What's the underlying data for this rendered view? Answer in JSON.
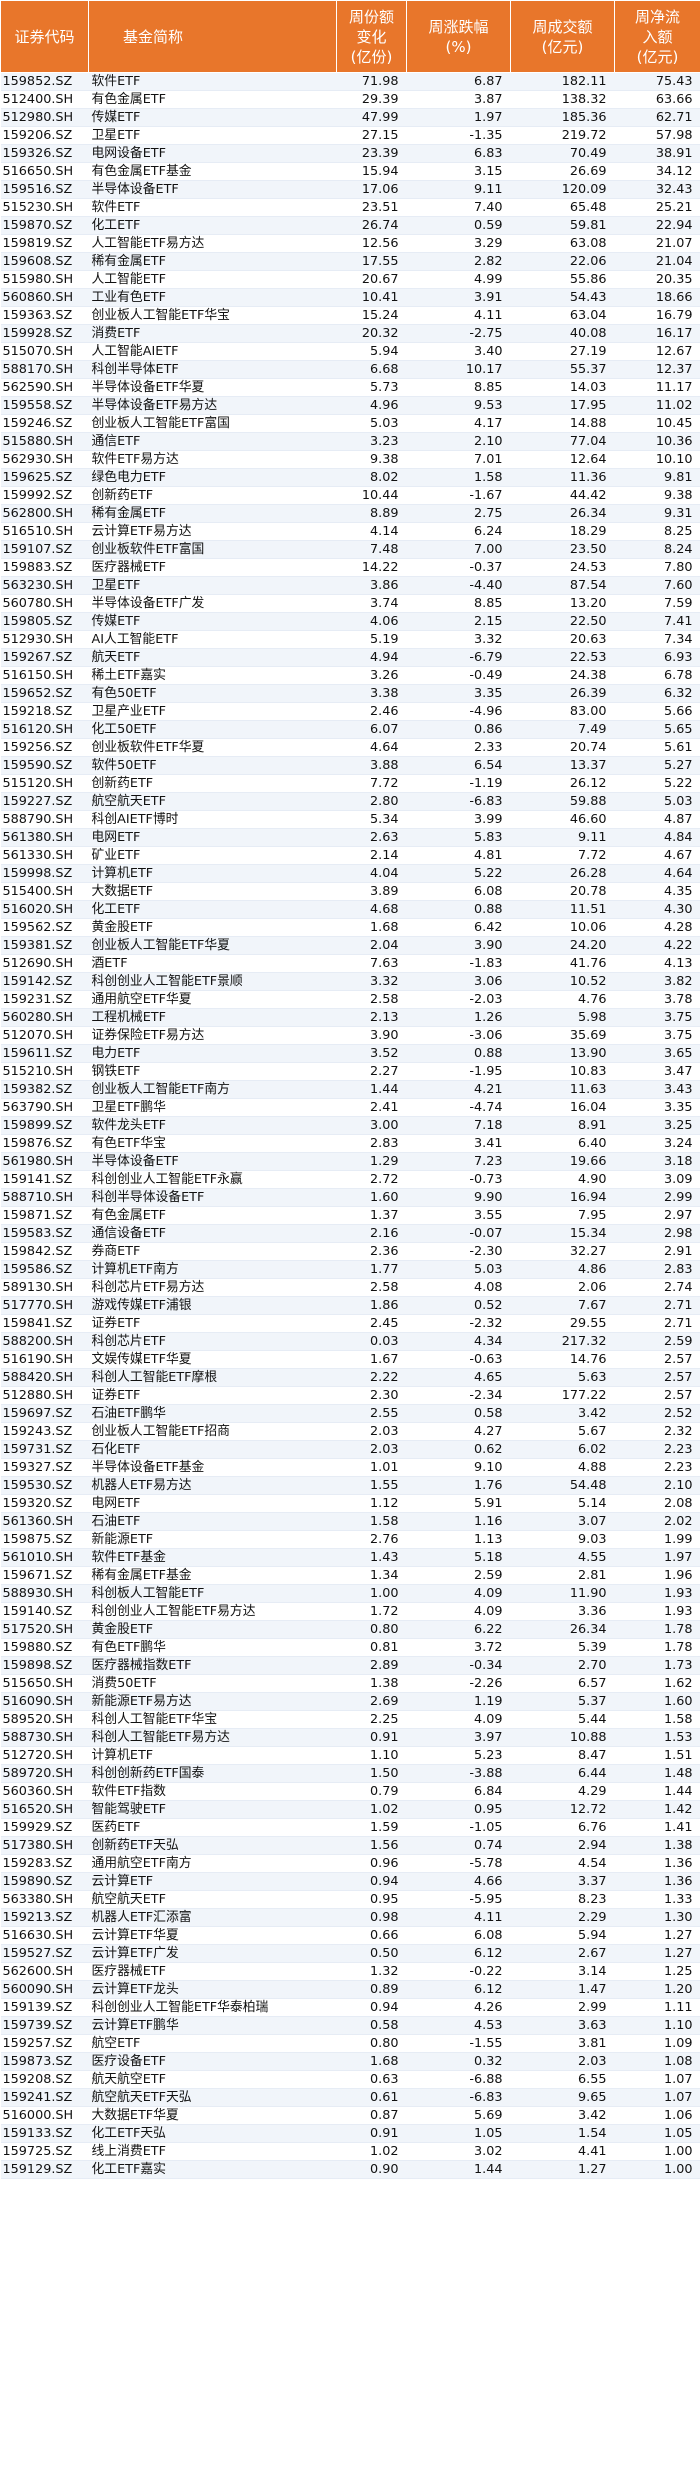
{
  "header": {
    "code": "证券代码",
    "name": "基金简称",
    "share_change": "周份额\n变化\n(亿份)",
    "pct_change": "周涨跌幅\n(%)",
    "turnover": "周成交额\n(亿元)",
    "net_inflow": "周净流\n入额\n(亿元)"
  },
  "rows": [
    [
      "159852.SZ",
      "软件ETF",
      "71.98",
      "6.87",
      "182.11",
      "75.43"
    ],
    [
      "512400.SH",
      "有色金属ETF",
      "29.39",
      "3.87",
      "138.32",
      "63.66"
    ],
    [
      "512980.SH",
      "传媒ETF",
      "47.99",
      "1.97",
      "185.36",
      "62.71"
    ],
    [
      "159206.SZ",
      "卫星ETF",
      "27.15",
      "-1.35",
      "219.72",
      "57.98"
    ],
    [
      "159326.SZ",
      "电网设备ETF",
      "23.39",
      "6.83",
      "70.49",
      "38.91"
    ],
    [
      "516650.SH",
      "有色金属ETF基金",
      "15.94",
      "3.15",
      "26.69",
      "34.12"
    ],
    [
      "159516.SZ",
      "半导体设备ETF",
      "17.06",
      "9.11",
      "120.09",
      "32.43"
    ],
    [
      "515230.SH",
      "软件ETF",
      "23.51",
      "7.40",
      "65.48",
      "25.21"
    ],
    [
      "159870.SZ",
      "化工ETF",
      "26.74",
      "0.59",
      "59.81",
      "22.94"
    ],
    [
      "159819.SZ",
      "人工智能ETF易方达",
      "12.56",
      "3.29",
      "63.08",
      "21.07"
    ],
    [
      "159608.SZ",
      "稀有金属ETF",
      "17.55",
      "2.82",
      "22.06",
      "21.04"
    ],
    [
      "515980.SH",
      "人工智能ETF",
      "20.67",
      "4.99",
      "55.86",
      "20.35"
    ],
    [
      "560860.SH",
      "工业有色ETF",
      "10.41",
      "3.91",
      "54.43",
      "18.66"
    ],
    [
      "159363.SZ",
      "创业板人工智能ETF华宝",
      "15.24",
      "4.11",
      "63.04",
      "16.79"
    ],
    [
      "159928.SZ",
      "消费ETF",
      "20.32",
      "-2.75",
      "40.08",
      "16.17"
    ],
    [
      "515070.SH",
      "人工智能AIETF",
      "5.94",
      "3.40",
      "27.19",
      "12.67"
    ],
    [
      "588170.SH",
      "科创半导体ETF",
      "6.68",
      "10.17",
      "55.37",
      "12.37"
    ],
    [
      "562590.SH",
      "半导体设备ETF华夏",
      "5.73",
      "8.85",
      "14.03",
      "11.17"
    ],
    [
      "159558.SZ",
      "半导体设备ETF易方达",
      "4.96",
      "9.53",
      "17.95",
      "11.02"
    ],
    [
      "159246.SZ",
      "创业板人工智能ETF富国",
      "5.03",
      "4.17",
      "14.88",
      "10.45"
    ],
    [
      "515880.SH",
      "通信ETF",
      "3.23",
      "2.10",
      "77.04",
      "10.36"
    ],
    [
      "562930.SH",
      "软件ETF易方达",
      "9.38",
      "7.01",
      "12.64",
      "10.10"
    ],
    [
      "159625.SZ",
      "绿色电力ETF",
      "8.02",
      "1.58",
      "11.36",
      "9.81"
    ],
    [
      "159992.SZ",
      "创新药ETF",
      "10.44",
      "-1.67",
      "44.42",
      "9.38"
    ],
    [
      "562800.SH",
      "稀有金属ETF",
      "8.89",
      "2.75",
      "26.34",
      "9.31"
    ],
    [
      "516510.SH",
      "云计算ETF易方达",
      "4.14",
      "6.24",
      "18.29",
      "8.25"
    ],
    [
      "159107.SZ",
      "创业板软件ETF富国",
      "7.48",
      "7.00",
      "23.50",
      "8.24"
    ],
    [
      "159883.SZ",
      "医疗器械ETF",
      "14.22",
      "-0.37",
      "24.53",
      "7.80"
    ],
    [
      "563230.SH",
      "卫星ETF",
      "3.86",
      "-4.40",
      "87.54",
      "7.60"
    ],
    [
      "560780.SH",
      "半导体设备ETF广发",
      "3.74",
      "8.85",
      "13.20",
      "7.59"
    ],
    [
      "159805.SZ",
      "传媒ETF",
      "4.06",
      "2.15",
      "22.50",
      "7.41"
    ],
    [
      "512930.SH",
      "AI人工智能ETF",
      "5.19",
      "3.32",
      "20.63",
      "7.34"
    ],
    [
      "159267.SZ",
      "航天ETF",
      "4.94",
      "-6.79",
      "22.53",
      "6.93"
    ],
    [
      "516150.SH",
      "稀土ETF嘉实",
      "3.26",
      "-0.49",
      "24.38",
      "6.78"
    ],
    [
      "159652.SZ",
      "有色50ETF",
      "3.38",
      "3.35",
      "26.39",
      "6.32"
    ],
    [
      "159218.SZ",
      "卫星产业ETF",
      "2.46",
      "-4.96",
      "83.00",
      "5.66"
    ],
    [
      "516120.SH",
      "化工50ETF",
      "6.07",
      "0.86",
      "7.49",
      "5.65"
    ],
    [
      "159256.SZ",
      "创业板软件ETF华夏",
      "4.64",
      "2.33",
      "20.74",
      "5.61"
    ],
    [
      "159590.SZ",
      "软件50ETF",
      "3.88",
      "6.54",
      "13.37",
      "5.27"
    ],
    [
      "515120.SH",
      "创新药ETF",
      "7.72",
      "-1.19",
      "26.12",
      "5.22"
    ],
    [
      "159227.SZ",
      "航空航天ETF",
      "2.80",
      "-6.83",
      "59.88",
      "5.03"
    ],
    [
      "588790.SH",
      "科创AIETF博时",
      "5.34",
      "3.99",
      "46.60",
      "4.87"
    ],
    [
      "561380.SH",
      "电网ETF",
      "2.63",
      "5.83",
      "9.11",
      "4.84"
    ],
    [
      "561330.SH",
      "矿业ETF",
      "2.14",
      "4.81",
      "7.72",
      "4.67"
    ],
    [
      "159998.SZ",
      "计算机ETF",
      "4.04",
      "5.22",
      "26.28",
      "4.64"
    ],
    [
      "515400.SH",
      "大数据ETF",
      "3.89",
      "6.08",
      "20.78",
      "4.35"
    ],
    [
      "516020.SH",
      "化工ETF",
      "4.68",
      "0.88",
      "11.51",
      "4.30"
    ],
    [
      "159562.SZ",
      "黄金股ETF",
      "1.68",
      "6.42",
      "10.06",
      "4.28"
    ],
    [
      "159381.SZ",
      "创业板人工智能ETF华夏",
      "2.04",
      "3.90",
      "24.20",
      "4.22"
    ],
    [
      "512690.SH",
      "酒ETF",
      "7.63",
      "-1.83",
      "41.76",
      "4.13"
    ],
    [
      "159142.SZ",
      "科创创业人工智能ETF景顺",
      "3.32",
      "3.06",
      "10.52",
      "3.82"
    ],
    [
      "159231.SZ",
      "通用航空ETF华夏",
      "2.58",
      "-2.03",
      "4.76",
      "3.78"
    ],
    [
      "560280.SH",
      "工程机械ETF",
      "2.13",
      "1.26",
      "5.98",
      "3.75"
    ],
    [
      "512070.SH",
      "证券保险ETF易方达",
      "3.90",
      "-3.06",
      "35.69",
      "3.75"
    ],
    [
      "159611.SZ",
      "电力ETF",
      "3.52",
      "0.88",
      "13.90",
      "3.65"
    ],
    [
      "515210.SH",
      "钢铁ETF",
      "2.27",
      "-1.95",
      "10.83",
      "3.47"
    ],
    [
      "159382.SZ",
      "创业板人工智能ETF南方",
      "1.44",
      "4.21",
      "11.63",
      "3.43"
    ],
    [
      "563790.SH",
      "卫星ETF鹏华",
      "2.41",
      "-4.74",
      "16.04",
      "3.35"
    ],
    [
      "159899.SZ",
      "软件龙头ETF",
      "3.00",
      "7.18",
      "8.91",
      "3.25"
    ],
    [
      "159876.SZ",
      "有色ETF华宝",
      "2.83",
      "3.41",
      "6.40",
      "3.24"
    ],
    [
      "561980.SH",
      "半导体设备ETF",
      "1.29",
      "7.23",
      "19.66",
      "3.18"
    ],
    [
      "159141.SZ",
      "科创创业人工智能ETF永赢",
      "2.72",
      "-0.73",
      "4.90",
      "3.09"
    ],
    [
      "588710.SH",
      "科创半导体设备ETF",
      "1.60",
      "9.90",
      "16.94",
      "2.99"
    ],
    [
      "159871.SZ",
      "有色金属ETF",
      "1.37",
      "3.55",
      "7.95",
      "2.97"
    ],
    [
      "159583.SZ",
      "通信设备ETF",
      "2.16",
      "-0.07",
      "15.34",
      "2.98"
    ],
    [
      "159842.SZ",
      "券商ETF",
      "2.36",
      "-2.30",
      "32.27",
      "2.91"
    ],
    [
      "159586.SZ",
      "计算机ETF南方",
      "1.77",
      "5.03",
      "4.86",
      "2.83"
    ],
    [
      "589130.SH",
      "科创芯片ETF易方达",
      "2.58",
      "4.08",
      "2.06",
      "2.74"
    ],
    [
      "517770.SH",
      "游戏传媒ETF浦银",
      "1.86",
      "0.52",
      "7.67",
      "2.71"
    ],
    [
      "159841.SZ",
      "证券ETF",
      "2.45",
      "-2.32",
      "29.55",
      "2.71"
    ],
    [
      "588200.SH",
      "科创芯片ETF",
      "0.03",
      "4.34",
      "217.32",
      "2.59"
    ],
    [
      "516190.SH",
      "文娱传媒ETF华夏",
      "1.67",
      "-0.63",
      "14.76",
      "2.57"
    ],
    [
      "588420.SH",
      "科创人工智能ETF摩根",
      "2.22",
      "4.65",
      "5.63",
      "2.57"
    ],
    [
      "512880.SH",
      "证券ETF",
      "2.30",
      "-2.34",
      "177.22",
      "2.57"
    ],
    [
      "159697.SZ",
      "石油ETF鹏华",
      "2.55",
      "0.58",
      "3.42",
      "2.52"
    ],
    [
      "159243.SZ",
      "创业板人工智能ETF招商",
      "2.03",
      "4.27",
      "5.67",
      "2.32"
    ],
    [
      "159731.SZ",
      "石化ETF",
      "2.03",
      "0.62",
      "6.02",
      "2.23"
    ],
    [
      "159327.SZ",
      "半导体设备ETF基金",
      "1.01",
      "9.10",
      "4.88",
      "2.23"
    ],
    [
      "159530.SZ",
      "机器人ETF易方达",
      "1.55",
      "1.76",
      "54.48",
      "2.10"
    ],
    [
      "159320.SZ",
      "电网ETF",
      "1.12",
      "5.91",
      "5.14",
      "2.08"
    ],
    [
      "561360.SH",
      "石油ETF",
      "1.58",
      "1.16",
      "3.07",
      "2.02"
    ],
    [
      "159875.SZ",
      "新能源ETF",
      "2.76",
      "1.13",
      "9.03",
      "1.99"
    ],
    [
      "561010.SH",
      "软件ETF基金",
      "1.43",
      "5.18",
      "4.55",
      "1.97"
    ],
    [
      "159671.SZ",
      "稀有金属ETF基金",
      "1.34",
      "2.59",
      "2.81",
      "1.96"
    ],
    [
      "588930.SH",
      "科创板人工智能ETF",
      "1.00",
      "4.09",
      "11.90",
      "1.93"
    ],
    [
      "159140.SZ",
      "科创创业人工智能ETF易方达",
      "1.72",
      "4.09",
      "3.36",
      "1.93"
    ],
    [
      "517520.SH",
      "黄金股ETF",
      "0.80",
      "6.22",
      "26.34",
      "1.78"
    ],
    [
      "159880.SZ",
      "有色ETF鹏华",
      "0.81",
      "3.72",
      "5.39",
      "1.78"
    ],
    [
      "159898.SZ",
      "医疗器械指数ETF",
      "2.89",
      "-0.34",
      "2.70",
      "1.73"
    ],
    [
      "515650.SH",
      "消费50ETF",
      "1.38",
      "-2.26",
      "6.57",
      "1.62"
    ],
    [
      "516090.SH",
      "新能源ETF易方达",
      "2.69",
      "1.19",
      "5.37",
      "1.60"
    ],
    [
      "589520.SH",
      "科创人工智能ETF华宝",
      "2.25",
      "4.09",
      "5.44",
      "1.58"
    ],
    [
      "588730.SH",
      "科创人工智能ETF易方达",
      "0.91",
      "3.97",
      "10.88",
      "1.53"
    ],
    [
      "512720.SH",
      "计算机ETF",
      "1.10",
      "5.23",
      "8.47",
      "1.51"
    ],
    [
      "589720.SH",
      "科创创新药ETF国泰",
      "1.50",
      "-3.88",
      "6.44",
      "1.48"
    ],
    [
      "560360.SH",
      "软件ETF指数",
      "0.79",
      "6.84",
      "4.29",
      "1.44"
    ],
    [
      "516520.SH",
      "智能驾驶ETF",
      "1.02",
      "0.95",
      "12.72",
      "1.42"
    ],
    [
      "159929.SZ",
      "医药ETF",
      "1.59",
      "-1.05",
      "6.76",
      "1.41"
    ],
    [
      "517380.SH",
      "创新药ETF天弘",
      "1.56",
      "0.74",
      "2.94",
      "1.38"
    ],
    [
      "159283.SZ",
      "通用航空ETF南方",
      "0.96",
      "-5.78",
      "4.54",
      "1.36"
    ],
    [
      "159890.SZ",
      "云计算ETF",
      "0.94",
      "4.66",
      "3.37",
      "1.36"
    ],
    [
      "563380.SH",
      "航空航天ETF",
      "0.95",
      "-5.95",
      "8.23",
      "1.33"
    ],
    [
      "159213.SZ",
      "机器人ETF汇添富",
      "0.98",
      "4.11",
      "2.29",
      "1.30"
    ],
    [
      "516630.SH",
      "云计算ETF华夏",
      "0.66",
      "6.08",
      "5.94",
      "1.27"
    ],
    [
      "159527.SZ",
      "云计算ETF广发",
      "0.50",
      "6.12",
      "2.67",
      "1.27"
    ],
    [
      "562600.SH",
      "医疗器械ETF",
      "1.32",
      "-0.22",
      "3.14",
      "1.25"
    ],
    [
      "560090.SH",
      "云计算ETF龙头",
      "0.89",
      "6.12",
      "1.47",
      "1.20"
    ],
    [
      "159139.SZ",
      "科创创业人工智能ETF华泰柏瑞",
      "0.94",
      "4.26",
      "2.99",
      "1.11"
    ],
    [
      "159739.SZ",
      "云计算ETF鹏华",
      "0.58",
      "4.53",
      "3.63",
      "1.10"
    ],
    [
      "159257.SZ",
      "航空ETF",
      "0.80",
      "-1.55",
      "3.81",
      "1.09"
    ],
    [
      "159873.SZ",
      "医疗设备ETF",
      "1.68",
      "0.32",
      "2.03",
      "1.08"
    ],
    [
      "159208.SZ",
      "航天航空ETF",
      "0.63",
      "-6.88",
      "6.55",
      "1.07"
    ],
    [
      "159241.SZ",
      "航空航天ETF天弘",
      "0.61",
      "-6.83",
      "9.65",
      "1.07"
    ],
    [
      "516000.SH",
      "大数据ETF华夏",
      "0.87",
      "5.69",
      "3.42",
      "1.06"
    ],
    [
      "159133.SZ",
      "化工ETF天弘",
      "0.91",
      "1.05",
      "1.54",
      "1.05"
    ],
    [
      "159725.SZ",
      "线上消费ETF",
      "1.02",
      "3.02",
      "4.41",
      "1.00"
    ],
    [
      "159129.SZ",
      "化工ETF嘉实",
      "0.90",
      "1.44",
      "1.27",
      "1.00"
    ]
  ]
}
